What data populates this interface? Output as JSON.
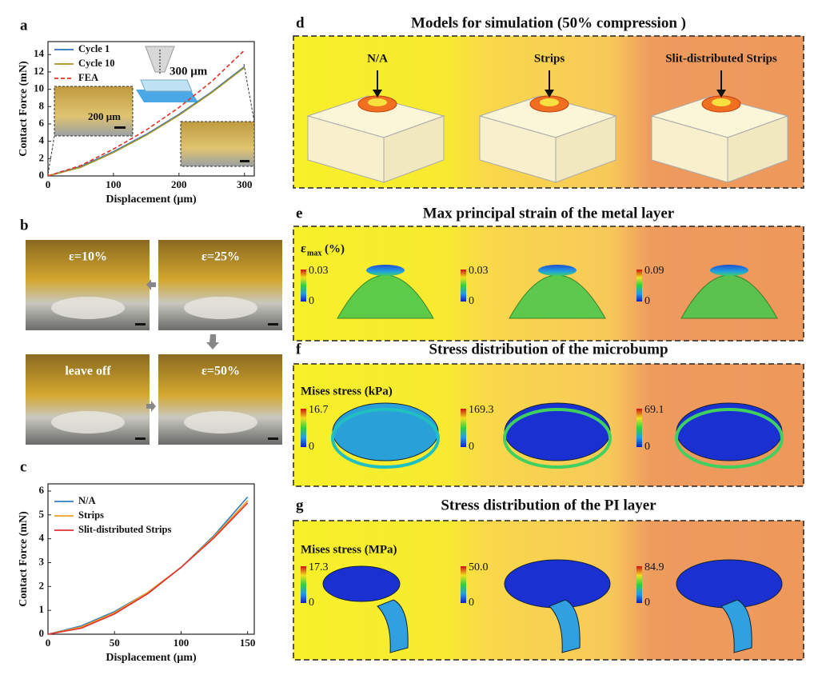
{
  "panel_labels": [
    "a",
    "b",
    "c",
    "d",
    "e",
    "f",
    "g"
  ],
  "chart_data": [
    {
      "type": "line",
      "xlabel": "Displacement (μm)",
      "ylabel": "Contact Force (mN)",
      "x": [
        0,
        50,
        100,
        150,
        200,
        250,
        300
      ],
      "series": [
        {
          "name": "Cycle 1",
          "color": "#2f6fb5",
          "values": [
            0,
            1.1,
            2.8,
            4.8,
            7.1,
            9.7,
            12.6
          ]
        },
        {
          "name": "Cycle 10",
          "color": "#a8962a",
          "values": [
            0,
            1.0,
            2.7,
            4.7,
            7.0,
            9.6,
            12.5
          ]
        },
        {
          "name": "FEA",
          "color": "#e0302a",
          "style": "dashed",
          "values": [
            0,
            1.2,
            3.1,
            5.3,
            7.9,
            10.9,
            14.5
          ]
        }
      ],
      "xlim": [
        0,
        315
      ],
      "ylim": [
        0,
        15.5
      ],
      "xticks": [
        0,
        100,
        200,
        300
      ],
      "yticks": [
        0,
        2,
        4,
        6,
        8,
        10,
        12,
        14
      ]
    },
    {
      "type": "line",
      "xlabel": "Displacement (μm)",
      "ylabel": "Contact Force (mN)",
      "x": [
        0,
        25,
        50,
        75,
        100,
        125,
        150
      ],
      "series": [
        {
          "name": "N/A",
          "color": "#2f7fc1",
          "values": [
            0,
            0.35,
            0.95,
            1.75,
            2.8,
            4.15,
            5.75
          ]
        },
        {
          "name": "Strips",
          "color": "#f0a020",
          "values": [
            0,
            0.3,
            0.9,
            1.75,
            2.8,
            4.1,
            5.6
          ]
        },
        {
          "name": "Slit-distributed Strips",
          "color": "#e03030",
          "values": [
            0,
            0.25,
            0.85,
            1.7,
            2.8,
            4.05,
            5.5
          ]
        }
      ],
      "xlim": [
        0,
        155
      ],
      "ylim": [
        0,
        6.3
      ],
      "xticks": [
        0,
        50,
        100,
        150
      ],
      "yticks": [
        0,
        1,
        2,
        3,
        4,
        5,
        6
      ]
    }
  ],
  "panel_a": {
    "indent_label": "300 μm",
    "scale_label": "200 μm"
  },
  "panel_b": {
    "steps": [
      "ε=10%",
      "ε=25%",
      "ε=50%",
      "leave off"
    ]
  },
  "panel_d": {
    "title": "Models for simulation (50% compression )",
    "models": [
      "N/A",
      "Strips",
      "Slit-distributed Strips"
    ]
  },
  "panel_e": {
    "title": "Max principal strain of the metal layer",
    "legend_symbol": "ε",
    "legend_sub": "max",
    "legend_unit": "(%)",
    "colorbars": [
      {
        "max": "0.03",
        "min": "0"
      },
      {
        "max": "0.03",
        "min": "0"
      },
      {
        "max": "0.09",
        "min": "0"
      }
    ]
  },
  "panel_f": {
    "title": "Stress distribution of the microbump",
    "legend_title": "Mises stress (kPa)",
    "colorbars": [
      {
        "max": "16.7",
        "min": "0"
      },
      {
        "max": "169.3",
        "min": "0"
      },
      {
        "max": "69.1",
        "min": "0"
      }
    ]
  },
  "panel_g": {
    "title": "Stress distribution of the PI layer",
    "legend_title": "Mises stress (MPa)",
    "colorbars": [
      {
        "max": "17.3",
        "min": "0"
      },
      {
        "max": "50.0",
        "min": "0"
      },
      {
        "max": "84.9",
        "min": "0"
      }
    ]
  }
}
